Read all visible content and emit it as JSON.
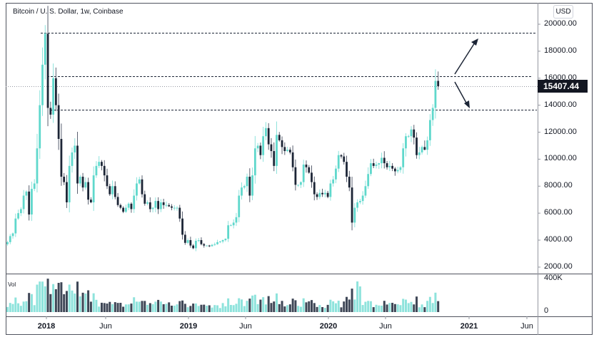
{
  "header": {
    "title": "Bitcoin / U. S. Dollar, 1w, Coinbase",
    "currency_button": "USD"
  },
  "price_axis": {
    "ticks": [
      "20000.00",
      "18000.00",
      "16000.00",
      "14000.00",
      "12000.00",
      "10000.00",
      "8000.00",
      "6000.00",
      "4000.00",
      "2000.00"
    ],
    "last_price": "15407.44"
  },
  "volume_pane": {
    "label": "Vol",
    "ticks": [
      "400K",
      "0"
    ]
  },
  "time_axis": {
    "ticks": [
      {
        "label": "2018",
        "bold": true
      },
      {
        "label": "Jun",
        "bold": false
      },
      {
        "label": "2019",
        "bold": true
      },
      {
        "label": "Jun",
        "bold": false
      },
      {
        "label": "2020",
        "bold": true
      },
      {
        "label": "Jun",
        "bold": false
      },
      {
        "label": "2021",
        "bold": true
      },
      {
        "label": "Jun",
        "bold": false
      }
    ]
  },
  "colors": {
    "up": "#5fd8cc",
    "down": "#1c2536",
    "up_volume": "#8ee3dc",
    "down_volume": "#3e4656",
    "last_price_bg": "#131722",
    "annotation": "#1c2536"
  },
  "chart_data": {
    "type": "candlestick",
    "title": "Bitcoin / U. S. Dollar, 1w, Coinbase",
    "xlabel": "",
    "ylabel": "USD",
    "ylim": [
      1500,
      21000
    ],
    "y_ticks": [
      2000,
      4000,
      6000,
      8000,
      10000,
      12000,
      14000,
      16000,
      18000,
      20000
    ],
    "x_ticks": [
      "2018",
      "Jun",
      "2019",
      "Jun",
      "2020",
      "Jun",
      "2021",
      "Jun"
    ],
    "interval": "1w",
    "start_week": "2017-09-11",
    "last_price": 15407.44,
    "closes": [
      3850,
      4300,
      4500,
      5600,
      6000,
      6300,
      7300,
      7600,
      5900,
      7800,
      8200,
      10800,
      14000,
      17000,
      19300,
      13800,
      13300,
      16000,
      14000,
      11500,
      8700,
      8300,
      6800,
      9500,
      10500,
      11000,
      8200,
      8700,
      7900,
      8300,
      7000,
      6800,
      8800,
      9500,
      9800,
      9500,
      8800,
      8000,
      7400,
      8000,
      7200,
      6600,
      6400,
      6100,
      6400,
      6700,
      6300,
      7300,
      8200,
      8500,
      7400,
      6700,
      6800,
      6300,
      6400,
      6900,
      6300,
      6800,
      6600,
      6600,
      6500,
      6400,
      6400,
      6400,
      5600,
      4400,
      3800,
      4000,
      3600,
      3400,
      3950,
      4000,
      3700,
      3600,
      3600,
      3550,
      3650,
      3700,
      3850,
      3900,
      4000,
      4100,
      5100,
      5100,
      5300,
      5700,
      7300,
      7900,
      8000,
      8700,
      7300,
      8800,
      10800,
      11000,
      10300,
      11700,
      12300,
      11100,
      10600,
      9500,
      11800,
      11400,
      10900,
      10600,
      10700,
      10500,
      9400,
      8100,
      8100,
      8300,
      9600,
      9400,
      9000,
      8300,
      7400,
      7200,
      7500,
      7400,
      7500,
      7200,
      8200,
      8500,
      9300,
      10300,
      10200,
      9800,
      8700,
      7900,
      5300,
      6400,
      6800,
      6900,
      7300,
      8000,
      8900,
      9700,
      9500,
      9600,
      9700,
      10100,
      9700,
      9400,
      9500,
      9300,
      9100,
      9200,
      9400,
      10800,
      11700,
      11700,
      12200,
      11600,
      10300,
      10500,
      10900,
      10700,
      11400,
      12900,
      13800,
      15800,
      15407
    ],
    "volume_scale_max": 400000
  }
}
